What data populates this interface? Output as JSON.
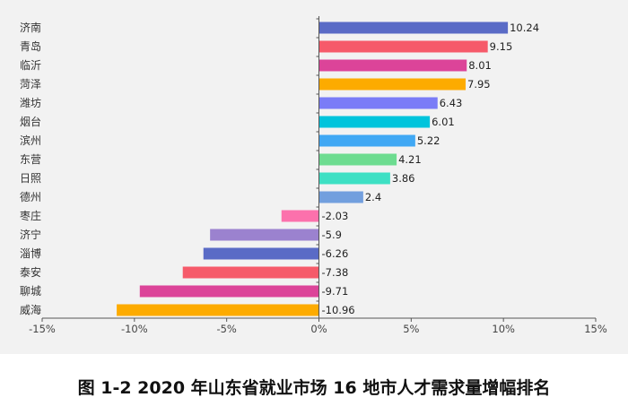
{
  "chart_data": {
    "type": "bar",
    "orientation": "horizontal",
    "title": "图 1-2 2020 年山东省就业市场 16 地市人才需求量增幅排名",
    "categories": [
      "济南",
      "青岛",
      "临沂",
      "菏泽",
      "潍坊",
      "烟台",
      "滨州",
      "东营",
      "日照",
      "德州",
      "枣庄",
      "济宁",
      "淄博",
      "泰安",
      "聊城",
      "威海"
    ],
    "values": [
      10.24,
      9.15,
      8.01,
      7.95,
      6.43,
      6.01,
      5.22,
      4.21,
      3.86,
      2.4,
      -2.03,
      -5.9,
      -6.26,
      -7.38,
      -9.71,
      -10.96
    ],
    "data_labels": [
      "10.24",
      "9.15",
      "8.01",
      "7.95",
      "6.43",
      "6.01",
      "5.22",
      "4.21",
      "3.86",
      "2.4",
      "-2.03",
      "-5.9",
      "-6.26",
      "-7.38",
      "-9.71",
      "-10.96"
    ],
    "colors": [
      "#5a6bc6",
      "#f65a6a",
      "#dc4499",
      "#fdab00",
      "#7a7cf7",
      "#00c4dc",
      "#40a8f4",
      "#6ddc90",
      "#3ee0c4",
      "#729fde",
      "#fc71ac",
      "#9b82cf",
      "#5a6bc6",
      "#f65a6a",
      "#dc4499",
      "#fdab00"
    ],
    "xlim": [
      -15,
      15
    ],
    "x_ticks": [
      -15,
      -10,
      -5,
      0,
      5,
      10,
      15
    ],
    "x_tick_labels": [
      "-15%",
      "-10%",
      "-5%",
      "0%",
      "5%",
      "10%",
      "15%"
    ],
    "xlabel": "",
    "ylabel": "",
    "grid": false,
    "legend": "none"
  }
}
